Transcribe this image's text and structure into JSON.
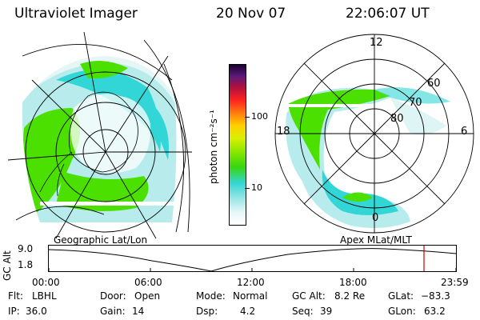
{
  "header": {
    "title": "Ultraviolet Imager",
    "date": "20 Nov 07",
    "time": "22:06:07 UT"
  },
  "colorbar": {
    "unit_label": "photon cm⁻²s⁻¹",
    "ticks": [
      "100",
      "10"
    ]
  },
  "geo_panel": {
    "label": "Geographic Lat/Lon"
  },
  "polar_panel": {
    "label": "Apex MLat/MLT",
    "mlt_labels": [
      "12",
      "18",
      "6",
      "0"
    ],
    "lat_labels": [
      "60",
      "70",
      "80"
    ]
  },
  "timeline": {
    "ylabel": "GC Alt",
    "y_ticks": [
      "9.0",
      "1.8"
    ],
    "x_ticks": [
      "00:00",
      "06:00",
      "12:00",
      "18:00",
      "23:59"
    ],
    "current_time_marker_color": "#cc0000"
  },
  "info": {
    "flt_label": "Flt:",
    "flt_value": "LBHL",
    "door_label": "Door:",
    "door_value": "Open",
    "mode_label": "Mode:",
    "mode_value": "Normal",
    "gcalt_label": "GC Alt:",
    "gcalt_value": "8.2 Re",
    "glat_label": "GLat:",
    "glat_value": "−83.3",
    "ip_label": "IP:",
    "ip_value": "36.0",
    "gain_label": "Gain:",
    "gain_value": "14",
    "dsp_label": "Dsp:",
    "dsp_value": "4.2",
    "seq_label": "Seq:",
    "seq_value": "39",
    "glon_label": "GLon:",
    "glon_value": "63.2"
  },
  "colors": {
    "aurora_green": "#4ce000",
    "aurora_cyan": "#33d6d6",
    "aurora_light": "#b8ecec",
    "speckle": "#dcdcdc",
    "marker": "#cc0000"
  }
}
